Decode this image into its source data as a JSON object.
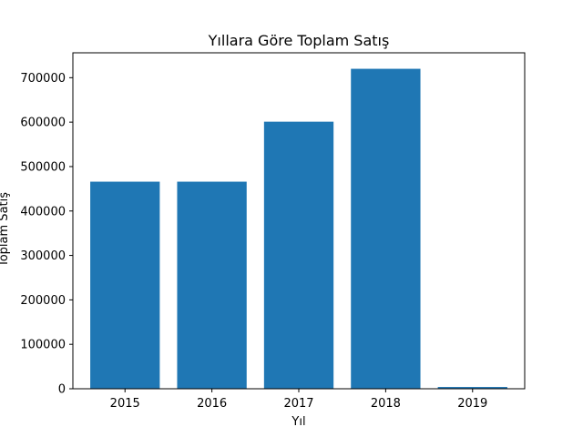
{
  "chart_data": {
    "type": "bar",
    "title": "Yıllara Göre Toplam Satış",
    "xlabel": "Yıl",
    "ylabel": "Toplam Satış",
    "categories": [
      "2015",
      "2016",
      "2017",
      "2018",
      "2019"
    ],
    "values": [
      466000,
      466000,
      601000,
      720000,
      4000
    ],
    "ylim": [
      0,
      756000
    ],
    "yticks": [
      0,
      100000,
      200000,
      300000,
      400000,
      500000,
      600000,
      700000
    ],
    "grid": false,
    "bar_color": "#1f77b4"
  }
}
